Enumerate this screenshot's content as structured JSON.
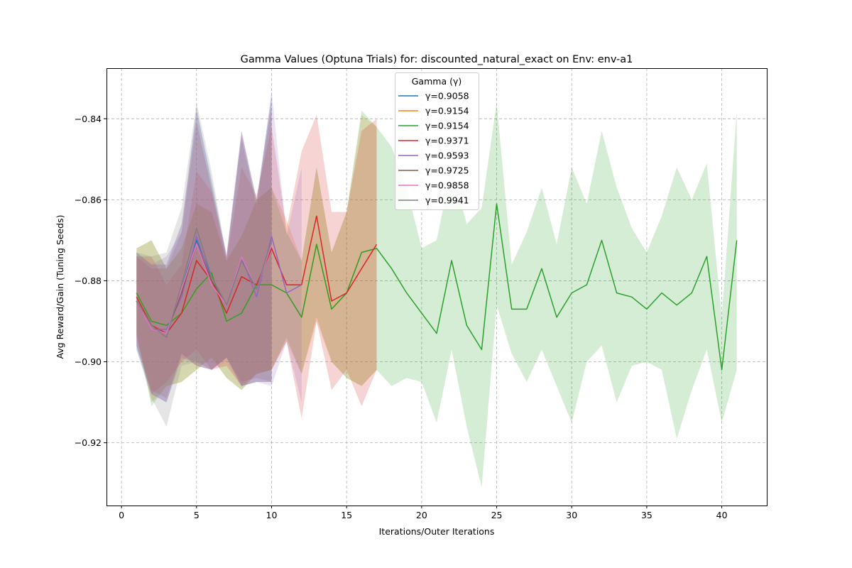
{
  "chart_data": {
    "type": "line",
    "title": "Gamma Values (Optuna Trials) for: discounted_natural_exact on Env: env-a1",
    "xlabel": "Iterations/Outer Iterations",
    "ylabel": "Avg Reward/Gain (Tuning Seeds)",
    "xlim": [
      -1,
      43
    ],
    "ylim": [
      -0.9355,
      -0.8275
    ],
    "xticks": [
      0,
      5,
      10,
      15,
      20,
      25,
      30,
      35,
      40
    ],
    "yticks": [
      -0.84,
      -0.86,
      -0.88,
      -0.9,
      -0.92
    ],
    "ytick_labels": [
      "−0.84",
      "−0.86",
      "−0.88",
      "−0.90",
      "−0.92"
    ],
    "grid": true,
    "legend": {
      "title": "Gamma (γ)",
      "placement": "top-center"
    },
    "series": [
      {
        "name": "γ=0.9058",
        "color": "#1f77b4",
        "x": [
          1,
          2,
          3,
          4,
          5,
          6,
          7,
          8,
          9,
          10
        ],
        "y": [
          -0.885,
          -0.892,
          -0.893,
          -0.882,
          -0.87,
          -0.879,
          -0.886,
          -0.874,
          -0.882,
          -0.87
        ],
        "lower": [
          -0.897,
          -0.908,
          -0.91,
          -0.898,
          -0.901,
          -0.902,
          -0.899,
          -0.906,
          -0.905,
          -0.905
        ],
        "upper": [
          -0.873,
          -0.876,
          -0.876,
          -0.866,
          -0.838,
          -0.855,
          -0.874,
          -0.843,
          -0.86,
          -0.834
        ]
      },
      {
        "name": "γ=0.9154",
        "color": "#ff7f0e",
        "x": [
          1,
          2,
          3,
          4,
          5,
          6,
          7,
          8,
          9,
          10,
          11,
          12,
          13,
          14,
          15,
          16,
          17
        ],
        "y": [
          -0.883,
          -0.89,
          -0.891,
          -0.888,
          -0.882,
          -0.878,
          -0.89,
          -0.888,
          -0.881,
          -0.881,
          -0.883,
          -0.889,
          -0.871,
          -0.887,
          -0.883,
          -0.873,
          -0.872
        ],
        "lower": [
          -0.893,
          -0.91,
          -0.906,
          -0.905,
          -0.902,
          -0.899,
          -0.904,
          -0.907,
          -0.903,
          -0.902,
          -0.895,
          -0.903,
          -0.89,
          -0.9,
          -0.904,
          -0.906,
          -0.902
        ],
        "upper": [
          -0.872,
          -0.87,
          -0.877,
          -0.872,
          -0.861,
          -0.863,
          -0.875,
          -0.869,
          -0.86,
          -0.857,
          -0.865,
          -0.875,
          -0.852,
          -0.873,
          -0.863,
          -0.839,
          -0.842
        ]
      },
      {
        "name": "γ=0.9154",
        "color": "#2ca02c",
        "x": [
          1,
          2,
          3,
          4,
          5,
          6,
          7,
          8,
          9,
          10,
          11,
          12,
          13,
          14,
          15,
          16,
          17,
          18,
          19,
          20,
          21,
          22,
          23,
          24,
          25,
          26,
          27,
          28,
          29,
          30,
          31,
          32,
          33,
          34,
          35,
          36,
          37,
          38,
          39,
          40,
          41
        ],
        "y": [
          -0.883,
          -0.89,
          -0.891,
          -0.888,
          -0.882,
          -0.878,
          -0.89,
          -0.888,
          -0.881,
          -0.881,
          -0.883,
          -0.889,
          -0.871,
          -0.887,
          -0.883,
          -0.873,
          -0.872,
          -0.877,
          -0.883,
          -0.888,
          -0.893,
          -0.875,
          -0.891,
          -0.897,
          -0.861,
          -0.887,
          -0.887,
          -0.877,
          -0.889,
          -0.883,
          -0.881,
          -0.87,
          -0.883,
          -0.884,
          -0.887,
          -0.883,
          -0.886,
          -0.883,
          -0.874,
          -0.902,
          -0.87
        ],
        "lower": [
          -0.893,
          -0.911,
          -0.906,
          -0.905,
          -0.902,
          -0.899,
          -0.904,
          -0.907,
          -0.903,
          -0.902,
          -0.894,
          -0.903,
          -0.889,
          -0.9,
          -0.904,
          -0.906,
          -0.902,
          -0.906,
          -0.904,
          -0.905,
          -0.915,
          -0.897,
          -0.916,
          -0.931,
          -0.886,
          -0.898,
          -0.905,
          -0.897,
          -0.906,
          -0.915,
          -0.9,
          -0.896,
          -0.91,
          -0.901,
          -0.9,
          -0.902,
          -0.919,
          -0.907,
          -0.897,
          -0.915,
          -0.902
        ],
        "upper": [
          -0.872,
          -0.87,
          -0.877,
          -0.872,
          -0.861,
          -0.863,
          -0.875,
          -0.869,
          -0.86,
          -0.857,
          -0.868,
          -0.875,
          -0.852,
          -0.873,
          -0.863,
          -0.838,
          -0.842,
          -0.847,
          -0.857,
          -0.872,
          -0.87,
          -0.852,
          -0.866,
          -0.862,
          -0.836,
          -0.876,
          -0.868,
          -0.857,
          -0.871,
          -0.852,
          -0.861,
          -0.843,
          -0.857,
          -0.867,
          -0.873,
          -0.864,
          -0.852,
          -0.86,
          -0.851,
          -0.889,
          -0.838
        ]
      },
      {
        "name": "γ=0.9371",
        "color": "#d62728",
        "x": [
          1,
          2,
          3,
          4,
          5,
          6,
          7,
          8,
          9,
          10,
          11,
          12,
          13,
          14,
          15,
          16,
          17
        ],
        "y": [
          -0.884,
          -0.891,
          -0.893,
          -0.888,
          -0.875,
          -0.88,
          -0.888,
          -0.879,
          -0.881,
          -0.872,
          -0.881,
          -0.881,
          -0.864,
          -0.885,
          -0.883,
          -0.877,
          -0.871
        ],
        "lower": [
          -0.894,
          -0.908,
          -0.905,
          -0.9,
          -0.897,
          -0.902,
          -0.901,
          -0.906,
          -0.903,
          -0.902,
          -0.895,
          -0.914,
          -0.89,
          -0.907,
          -0.902,
          -0.911,
          -0.902
        ],
        "upper": [
          -0.874,
          -0.874,
          -0.881,
          -0.876,
          -0.853,
          -0.858,
          -0.875,
          -0.852,
          -0.859,
          -0.842,
          -0.867,
          -0.848,
          -0.839,
          -0.863,
          -0.863,
          -0.843,
          -0.84
        ]
      },
      {
        "name": "γ=0.9593",
        "color": "#9467bd",
        "x": [
          1,
          2,
          3,
          4,
          5,
          6,
          7,
          8,
          9,
          10,
          11,
          12
        ],
        "y": [
          -0.885,
          -0.892,
          -0.892,
          -0.884,
          -0.869,
          -0.88,
          -0.886,
          -0.874,
          -0.884,
          -0.869,
          -0.883,
          -0.881
        ],
        "lower": [
          -0.896,
          -0.908,
          -0.91,
          -0.899,
          -0.9,
          -0.902,
          -0.899,
          -0.906,
          -0.905,
          -0.906,
          -0.895,
          -0.91
        ],
        "upper": [
          -0.873,
          -0.876,
          -0.874,
          -0.868,
          -0.837,
          -0.856,
          -0.874,
          -0.843,
          -0.862,
          -0.833,
          -0.869,
          -0.852
        ]
      },
      {
        "name": "γ=0.9725",
        "color": "#8c564b",
        "x": [
          1,
          2,
          3,
          4,
          5,
          6,
          7,
          8,
          9,
          10
        ],
        "y": [
          -0.885,
          -0.892,
          -0.893,
          -0.883,
          -0.871,
          -0.88,
          -0.886,
          -0.875,
          -0.882,
          -0.871
        ],
        "lower": [
          -0.896,
          -0.907,
          -0.909,
          -0.898,
          -0.901,
          -0.902,
          -0.899,
          -0.905,
          -0.904,
          -0.905
        ],
        "upper": [
          -0.874,
          -0.877,
          -0.877,
          -0.868,
          -0.841,
          -0.857,
          -0.874,
          -0.845,
          -0.861,
          -0.837
        ]
      },
      {
        "name": "γ=0.9858",
        "color": "#e377c2",
        "x": [
          1,
          2,
          3,
          4,
          5,
          6,
          7,
          8,
          9,
          10
        ],
        "y": [
          -0.885,
          -0.892,
          -0.893,
          -0.882,
          -0.871,
          -0.881,
          -0.886,
          -0.874,
          -0.882,
          -0.871
        ],
        "lower": [
          -0.896,
          -0.908,
          -0.91,
          -0.899,
          -0.901,
          -0.902,
          -0.9,
          -0.906,
          -0.905,
          -0.905
        ],
        "upper": [
          -0.874,
          -0.876,
          -0.876,
          -0.866,
          -0.84,
          -0.858,
          -0.873,
          -0.843,
          -0.86,
          -0.836
        ]
      },
      {
        "name": "γ=0.9941",
        "color": "#7f7f7f",
        "x": [
          1,
          2,
          3,
          4,
          5,
          6,
          7,
          8,
          9,
          10
        ],
        "y": [
          -0.885,
          -0.891,
          -0.894,
          -0.881,
          -0.867,
          -0.879,
          -0.886,
          -0.875,
          -0.882,
          -0.87
        ],
        "lower": [
          -0.897,
          -0.909,
          -0.916,
          -0.901,
          -0.9,
          -0.902,
          -0.899,
          -0.906,
          -0.905,
          -0.905
        ],
        "upper": [
          -0.873,
          -0.874,
          -0.873,
          -0.862,
          -0.836,
          -0.853,
          -0.874,
          -0.844,
          -0.86,
          -0.835
        ]
      }
    ]
  }
}
